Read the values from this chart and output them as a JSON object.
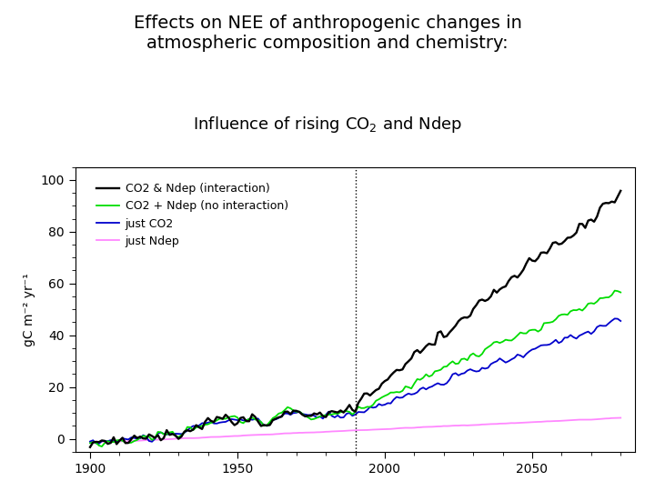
{
  "title_main": "Effects on NEE of anthropogenic changes in\natmospheric composition and chemistry:",
  "title_sub": "Influence of rising CO$_2$ and Ndep",
  "xlabel": "",
  "ylabel": "gC m⁻² yr⁻¹",
  "xlim": [
    1895,
    2085
  ],
  "ylim": [
    -5,
    105
  ],
  "yticks": [
    0,
    20,
    40,
    60,
    80,
    100
  ],
  "xticks": [
    1900,
    1950,
    2000,
    2050
  ],
  "vline_x": 1990,
  "colors": {
    "co2_ndep_interaction": "#000000",
    "co2_ndep_no_interaction": "#00dd00",
    "just_co2": "#0000cc",
    "just_ndep": "#ff88ff"
  },
  "legend_labels": [
    "CO2 & Ndep (interaction)",
    "CO2 + Ndep (no interaction)",
    "just CO2",
    "just Ndep"
  ],
  "title_main_fontsize": 14,
  "title_sub_fontsize": 13,
  "background_color": "#ffffff",
  "seed": 42
}
